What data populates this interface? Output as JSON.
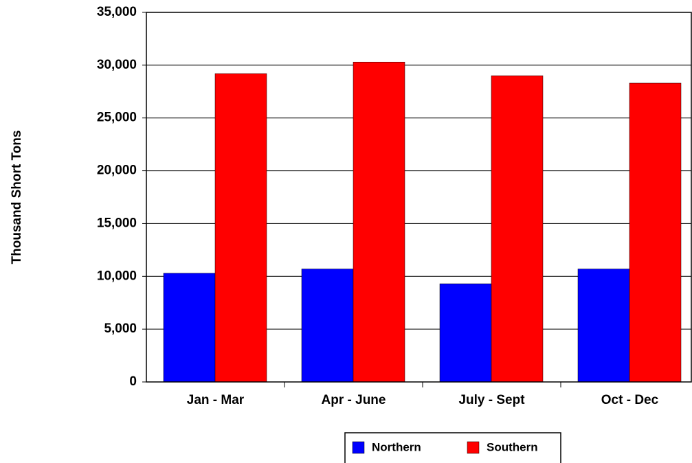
{
  "chart_data": {
    "type": "bar",
    "y_label": "Thousand Short Tons",
    "categories": [
      "Jan - Mar",
      "Apr - June",
      "July - Sept",
      "Oct - Dec"
    ],
    "series": [
      {
        "name": "Northern",
        "color": "#0000ff",
        "values": [
          10300,
          10700,
          9300,
          10700
        ]
      },
      {
        "name": "Southern",
        "color": "#ff0000",
        "values": [
          29200,
          30300,
          29000,
          28300
        ]
      }
    ],
    "ylim": [
      0,
      35000
    ],
    "yticks": [
      {
        "value": 0,
        "label": "0"
      },
      {
        "value": 5000,
        "label": "5,000"
      },
      {
        "value": 10000,
        "label": "10,000"
      },
      {
        "value": 15000,
        "label": "15,000"
      },
      {
        "value": 20000,
        "label": "20,000"
      },
      {
        "value": 25000,
        "label": "25,000"
      },
      {
        "value": 30000,
        "label": "30,000"
      },
      {
        "value": 35000,
        "label": "35,000"
      }
    ],
    "grid": true
  }
}
